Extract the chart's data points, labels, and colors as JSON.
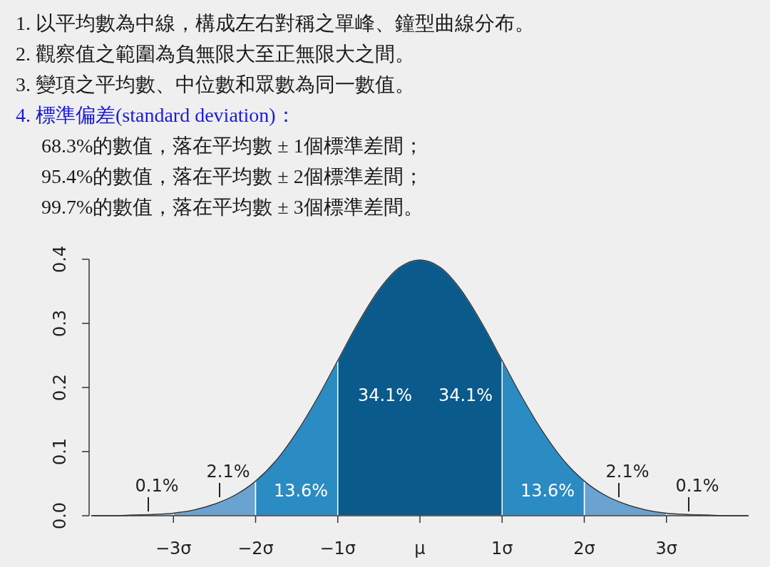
{
  "chart_data": {
    "type": "area",
    "title": "1. 以平均數為中線，構成左右對稱之單峰、鐘型曲線分布。\n2. 觀察值之範圍為負無限大至正無限大之間。\n3. 變項之平均數、中位數和眾數為同一數值。\n4. 標準偏差(standard deviation)：\n68.3%的數值，落在平均數 ± 1個標準差間；\n95.4%的數值，落在平均數 ± 2個標準差間；\n99.7%的數值，落在平均數 ± 3個標準差間。",
    "annotations": [
      "34.1%",
      "34.1%",
      "13.6%",
      "13.6%",
      "2.1%",
      "2.1%",
      "0.1%",
      "0.1%"
    ],
    "xlim": [
      -4,
      4
    ],
    "ylim": [
      0,
      0.4
    ],
    "xticks": [
      {
        "value": -3,
        "label": "−3σ"
      },
      {
        "value": -2,
        "label": "−2σ"
      },
      {
        "value": -1,
        "label": "−1σ"
      },
      {
        "value": 0,
        "label": "μ"
      },
      {
        "value": 1,
        "label": "1σ"
      },
      {
        "value": 2,
        "label": "2σ"
      },
      {
        "value": 3,
        "label": "3σ"
      }
    ],
    "yticks": [
      {
        "value": 0,
        "label": "0.0"
      },
      0.1,
      0.2,
      0.3,
      0.4
    ],
    "grid": false,
    "series": [
      {
        "color": "#a9c9e6",
        "x": [
          -4,
          -3.75,
          -3.5,
          -3.25,
          -3,
          0,
          3,
          3.25,
          3.5,
          3.75,
          4
        ],
        "values": [
          0,
          0,
          0.001,
          0.002,
          0.004,
          null,
          0.004,
          0.002,
          0.001,
          0,
          0
        ]
      },
      {
        "color": "#6aa3d2",
        "x": [
          -3,
          -2.75,
          -2.5,
          -2.25,
          -2,
          0,
          2,
          2.25,
          2.5,
          2.75,
          3
        ],
        "values": [
          0.004,
          0.009,
          0.018,
          0.032,
          0.054,
          null,
          0.054,
          0.032,
          0.018,
          0.009,
          0.004
        ]
      },
      {
        "color": "#2b8bc3",
        "x": [
          -2,
          -1.75,
          -1.5,
          -1.25,
          -1,
          0,
          1,
          1.25,
          1.5,
          1.75,
          2
        ],
        "values": [
          0.054,
          0.086,
          0.13,
          0.183,
          0.242,
          null,
          0.242,
          0.183,
          0.13,
          0.086,
          0.054
        ]
      },
      {
        "color": "#0a5a8c",
        "x": [
          -1,
          -0.75,
          -0.5,
          -0.25,
          0,
          0.25,
          0.5,
          0.75,
          1
        ],
        "values": [
          0.242,
          0.301,
          0.352,
          0.387,
          0.399,
          0.387,
          0.352,
          0.301,
          0.242
        ]
      },
      {
        "type": "line",
        "color": "#333333",
        "x": [
          -4,
          -3.75,
          -3.5,
          -3.25,
          -3,
          -2.75,
          -2.5,
          -2.25,
          -2,
          -1.75,
          -1.5,
          -1.25,
          -1,
          -0.75,
          -0.5,
          -0.25,
          0,
          0.25,
          0.5,
          0.75,
          1,
          1.25,
          1.5,
          1.75,
          2,
          2.25,
          2.5,
          2.75,
          3,
          3.25,
          3.5,
          3.75,
          4
        ],
        "values": [
          0,
          0,
          0.001,
          0.002,
          0.004,
          0.009,
          0.018,
          0.032,
          0.054,
          0.086,
          0.13,
          0.183,
          0.242,
          0.301,
          0.352,
          0.387,
          0.399,
          0.387,
          0.352,
          0.301,
          0.242,
          0.183,
          0.13,
          0.086,
          0.054,
          0.032,
          0.018,
          0.009,
          0.004,
          0.002,
          0.001,
          0,
          0
        ]
      }
    ]
  }
}
